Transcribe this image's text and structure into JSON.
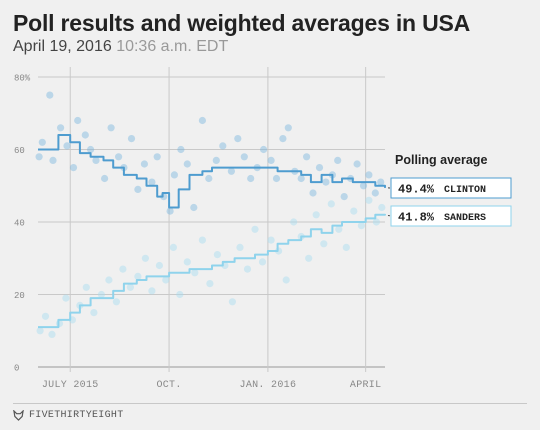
{
  "header": {
    "title": "Poll results and weighted averages in USA",
    "date": "April 19, 2016",
    "time": "10:36 a.m. EDT"
  },
  "footer": {
    "brand": "FIVETHIRTYEIGHT"
  },
  "colors": {
    "clinton": "#4e9ccf",
    "sanders": "#8fd3ec",
    "clinton_dots": "#7ab6de",
    "sanders_dots": "#a7dcef",
    "grid": "#c9c9c9",
    "axis_text": "#888888",
    "background": "#f0f0f0"
  },
  "chart_data": {
    "type": "line",
    "title": "Poll results and weighted averages in USA",
    "ylim": [
      0,
      80
    ],
    "y_ticks": [
      {
        "value": 0,
        "label": "0"
      },
      {
        "value": 20,
        "label": "20"
      },
      {
        "value": 40,
        "label": "40"
      },
      {
        "value": 60,
        "label": "60"
      },
      {
        "value": 80,
        "label": "80%"
      }
    ],
    "xlim": [
      "2015-06-01",
      "2016-04-19"
    ],
    "x_ticks": [
      {
        "value": "2015-07-01",
        "label": "JULY 2015"
      },
      {
        "value": "2015-10-01",
        "label": "OCT."
      },
      {
        "value": "2016-01-01",
        "label": "JAN. 2016"
      },
      {
        "value": "2016-04-01",
        "label": "APRIL"
      }
    ],
    "grid": true,
    "legend_title": "Polling average",
    "legend_placement": "right",
    "series": [
      {
        "name": "CLINTON",
        "final_value": 49.4,
        "final_label": "49.4%",
        "color": "#4e9ccf",
        "x": [
          "2015-06-01",
          "2015-06-10",
          "2015-06-20",
          "2015-07-01",
          "2015-07-10",
          "2015-07-20",
          "2015-08-01",
          "2015-08-10",
          "2015-08-20",
          "2015-09-01",
          "2015-09-10",
          "2015-09-20",
          "2015-09-25",
          "2015-10-01",
          "2015-10-10",
          "2015-10-20",
          "2015-11-01",
          "2015-11-10",
          "2015-11-20",
          "2015-12-01",
          "2015-12-10",
          "2015-12-20",
          "2016-01-01",
          "2016-01-10",
          "2016-01-20",
          "2016-02-01",
          "2016-02-10",
          "2016-02-20",
          "2016-03-01",
          "2016-03-10",
          "2016-03-20",
          "2016-04-01",
          "2016-04-10",
          "2016-04-19"
        ],
        "y": [
          60,
          60,
          64,
          62,
          59,
          58,
          57,
          55,
          53,
          52,
          50,
          47,
          48,
          44,
          49,
          53,
          54,
          55,
          55,
          55,
          55,
          55,
          55,
          54,
          54,
          53,
          51,
          53,
          51,
          52,
          51,
          51,
          50,
          49.4
        ],
        "polls": {
          "x": [
            "2015-06-02",
            "2015-06-05",
            "2015-06-12",
            "2015-06-15",
            "2015-06-22",
            "2015-06-28",
            "2015-07-04",
            "2015-07-08",
            "2015-07-15",
            "2015-07-20",
            "2015-07-25",
            "2015-08-02",
            "2015-08-08",
            "2015-08-15",
            "2015-08-20",
            "2015-08-27",
            "2015-09-02",
            "2015-09-08",
            "2015-09-15",
            "2015-09-20",
            "2015-09-26",
            "2015-10-02",
            "2015-10-06",
            "2015-10-12",
            "2015-10-18",
            "2015-10-24",
            "2015-11-01",
            "2015-11-07",
            "2015-11-14",
            "2015-11-20",
            "2015-11-28",
            "2015-12-04",
            "2015-12-10",
            "2015-12-16",
            "2015-12-22",
            "2015-12-28",
            "2016-01-04",
            "2016-01-09",
            "2016-01-15",
            "2016-01-20",
            "2016-01-26",
            "2016-02-01",
            "2016-02-06",
            "2016-02-12",
            "2016-02-18",
            "2016-02-24",
            "2016-03-01",
            "2016-03-06",
            "2016-03-12",
            "2016-03-18",
            "2016-03-24",
            "2016-03-30",
            "2016-04-04",
            "2016-04-10",
            "2016-04-15"
          ],
          "y": [
            58,
            62,
            75,
            57,
            66,
            61,
            55,
            68,
            64,
            60,
            57,
            52,
            66,
            58,
            55,
            63,
            49,
            56,
            51,
            58,
            47,
            43,
            53,
            60,
            56,
            44,
            68,
            52,
            57,
            61,
            54,
            63,
            58,
            52,
            55,
            60,
            57,
            52,
            63,
            66,
            54,
            52,
            58,
            48,
            55,
            51,
            53,
            57,
            47,
            52,
            56,
            50,
            53,
            48,
            51
          ]
        }
      },
      {
        "name": "SANDERS",
        "final_value": 41.8,
        "final_label": "41.8%",
        "color": "#8fd3ec",
        "x": [
          "2015-06-01",
          "2015-06-10",
          "2015-06-20",
          "2015-07-01",
          "2015-07-10",
          "2015-07-20",
          "2015-08-01",
          "2015-08-10",
          "2015-08-20",
          "2015-09-01",
          "2015-09-10",
          "2015-09-20",
          "2015-10-01",
          "2015-10-10",
          "2015-10-20",
          "2015-11-01",
          "2015-11-10",
          "2015-11-20",
          "2015-12-01",
          "2015-12-10",
          "2015-12-20",
          "2016-01-01",
          "2016-01-10",
          "2016-01-20",
          "2016-02-01",
          "2016-02-10",
          "2016-02-20",
          "2016-03-01",
          "2016-03-10",
          "2016-03-20",
          "2016-04-01",
          "2016-04-10",
          "2016-04-19"
        ],
        "y": [
          11,
          11,
          13,
          15,
          17,
          19,
          19,
          21,
          23,
          24,
          25,
          25,
          26,
          26,
          27,
          27,
          28,
          29,
          30,
          30,
          31,
          32,
          34,
          35,
          36,
          38,
          37,
          39,
          40,
          40,
          41,
          42,
          41.8
        ],
        "polls": {
          "x": [
            "2015-06-03",
            "2015-06-08",
            "2015-06-14",
            "2015-06-21",
            "2015-06-27",
            "2015-07-03",
            "2015-07-10",
            "2015-07-16",
            "2015-07-23",
            "2015-07-30",
            "2015-08-06",
            "2015-08-13",
            "2015-08-19",
            "2015-08-26",
            "2015-09-02",
            "2015-09-09",
            "2015-09-15",
            "2015-09-22",
            "2015-09-28",
            "2015-10-05",
            "2015-10-11",
            "2015-10-18",
            "2015-10-25",
            "2015-11-01",
            "2015-11-08",
            "2015-11-15",
            "2015-11-22",
            "2015-11-29",
            "2015-12-06",
            "2015-12-13",
            "2015-12-20",
            "2015-12-27",
            "2016-01-04",
            "2016-01-11",
            "2016-01-18",
            "2016-01-25",
            "2016-02-01",
            "2016-02-08",
            "2016-02-15",
            "2016-02-22",
            "2016-02-29",
            "2016-03-07",
            "2016-03-14",
            "2016-03-21",
            "2016-03-28",
            "2016-04-04",
            "2016-04-11",
            "2016-04-16"
          ],
          "y": [
            10,
            14,
            9,
            12,
            19,
            13,
            17,
            22,
            15,
            20,
            24,
            18,
            27,
            22,
            25,
            30,
            21,
            28,
            24,
            33,
            20,
            29,
            26,
            35,
            23,
            31,
            28,
            18,
            33,
            27,
            38,
            29,
            35,
            32,
            24,
            40,
            36,
            30,
            42,
            34,
            45,
            38,
            33,
            43,
            39,
            46,
            40,
            44
          ]
        }
      }
    ]
  }
}
